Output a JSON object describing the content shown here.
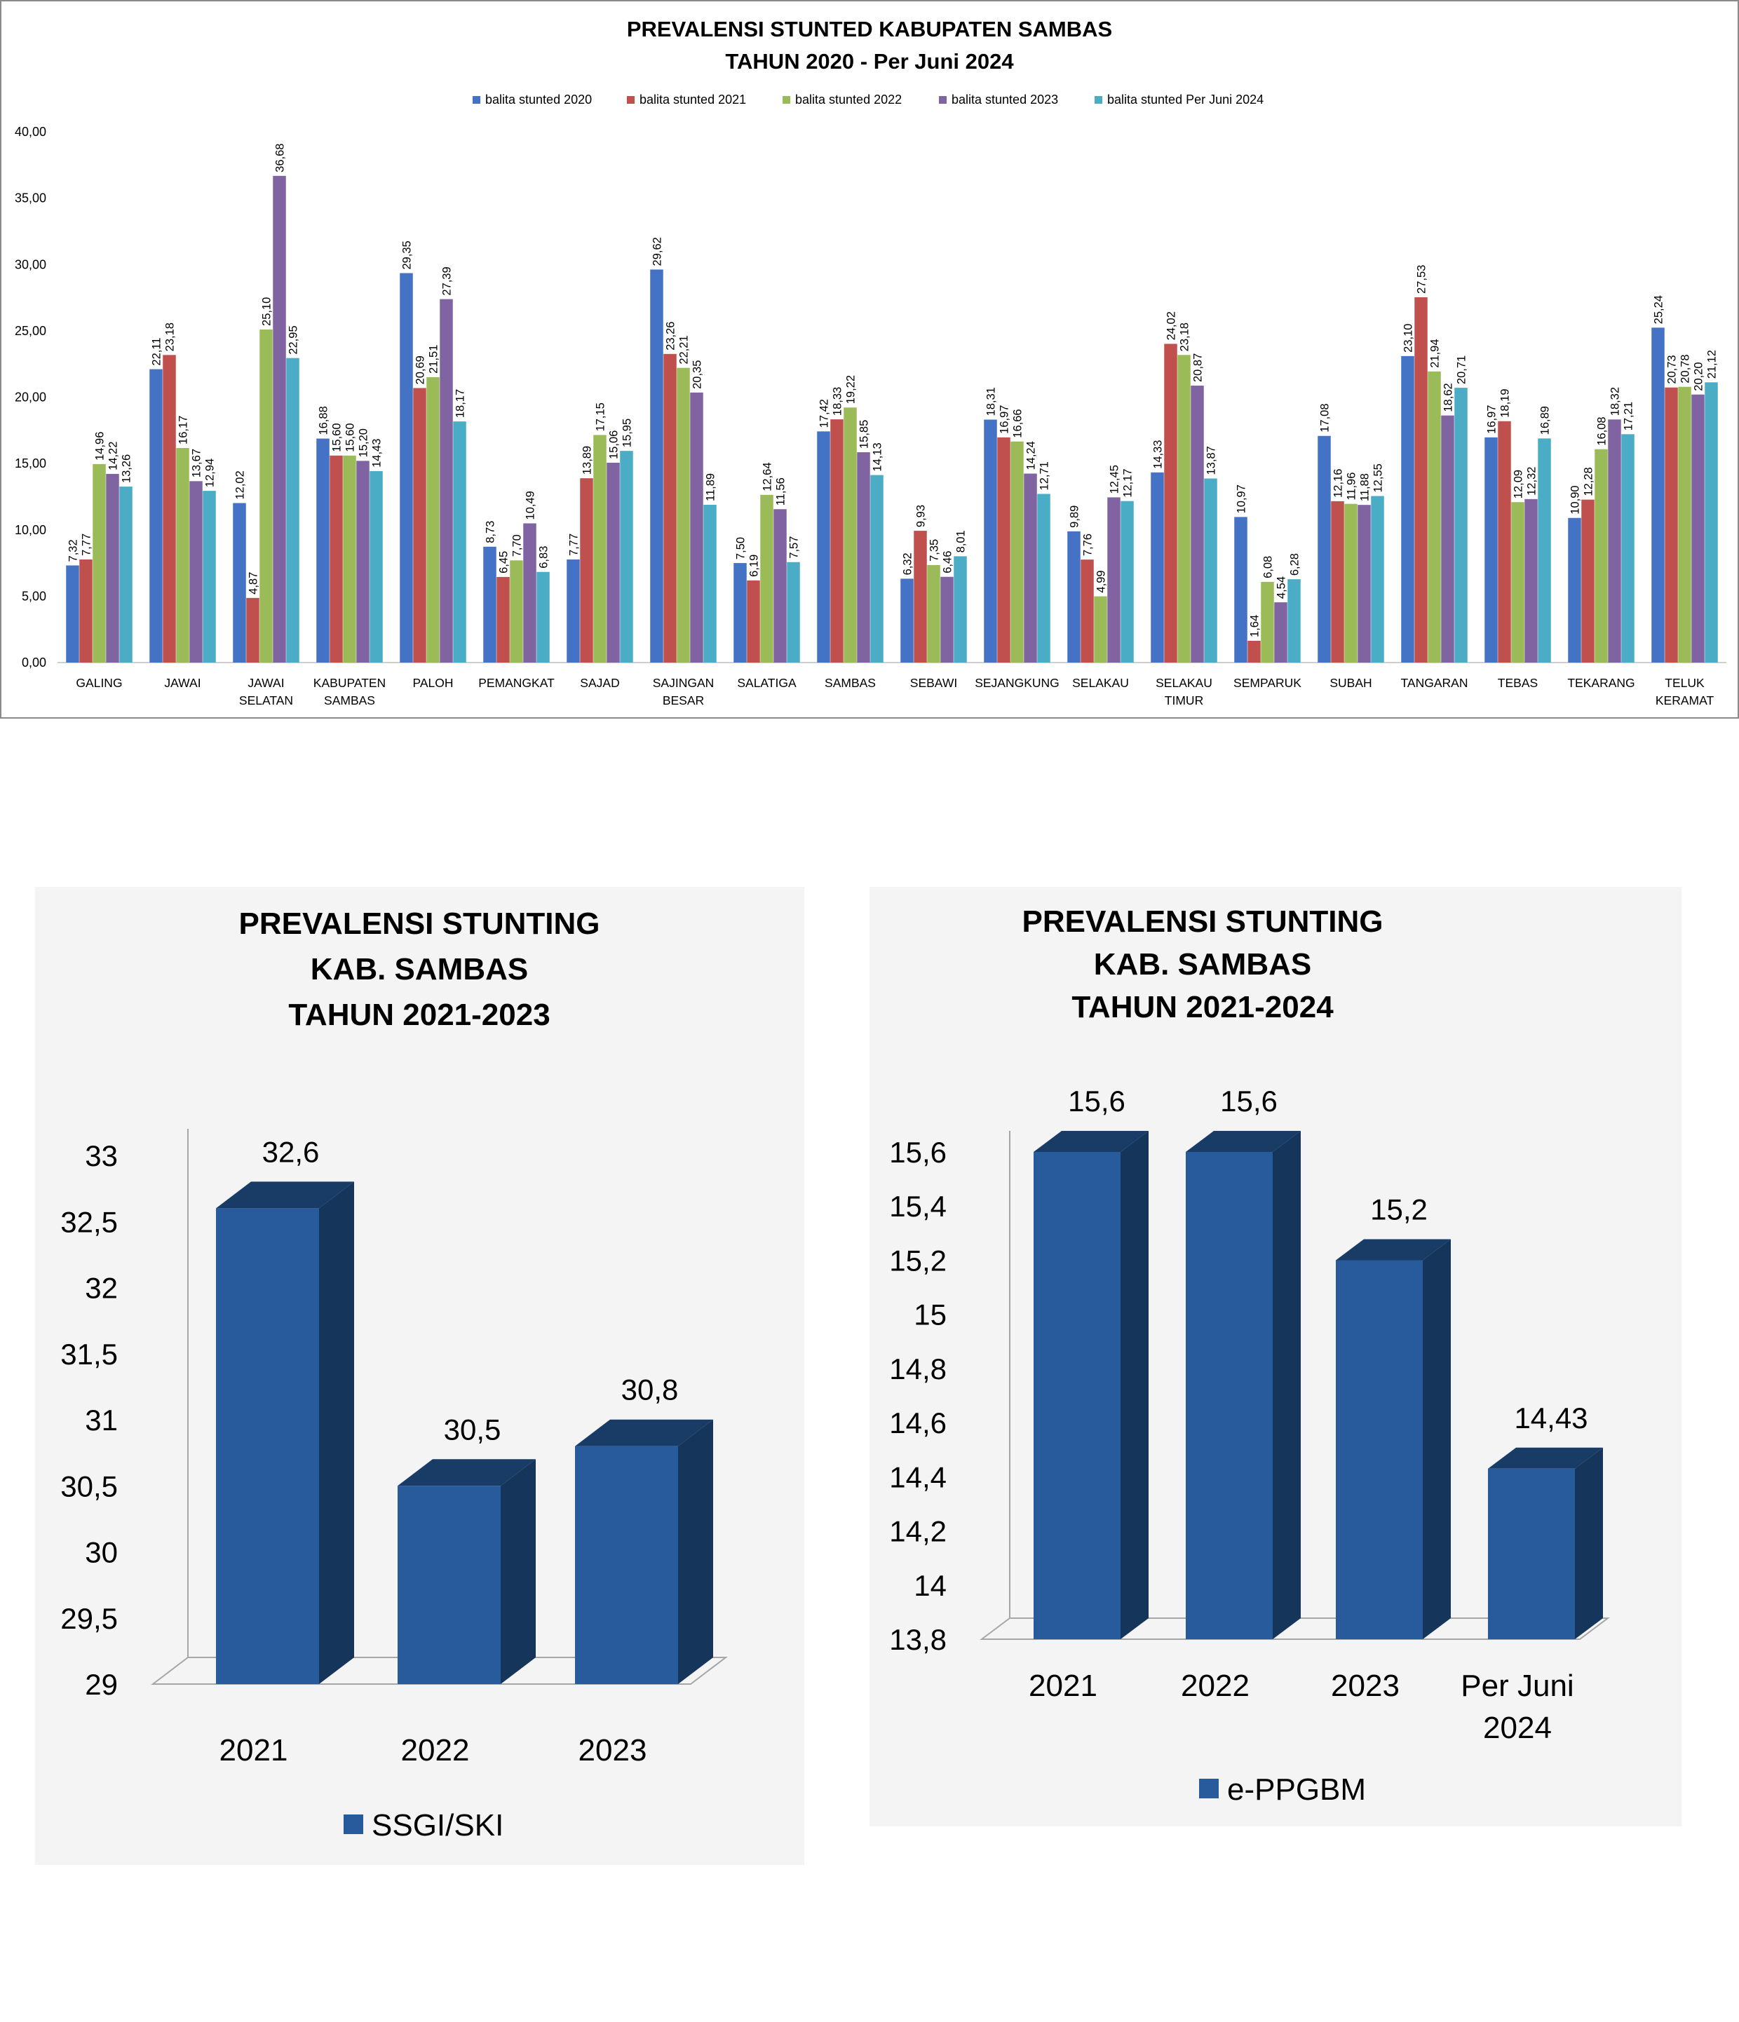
{
  "chart_data": [
    {
      "type": "bar",
      "title": "PREVALENSI STUNTED KABUPATEN SAMBAS",
      "subtitle": "TAHUN 2020 - Per Juni 2024",
      "ylim": [
        0,
        40
      ],
      "yticks": [
        "0,00",
        "5,00",
        "10,00",
        "15,00",
        "20,00",
        "25,00",
        "30,00",
        "35,00",
        "40,00"
      ],
      "legend_position": "top",
      "categories": [
        [
          "GALING"
        ],
        [
          "JAWAI"
        ],
        [
          "JAWAI",
          "SELATAN"
        ],
        [
          "KABUPATEN",
          "SAMBAS"
        ],
        [
          "PALOH"
        ],
        [
          "PEMANGKAT"
        ],
        [
          "SAJAD"
        ],
        [
          "SAJINGAN",
          "BESAR"
        ],
        [
          "SALATIGA"
        ],
        [
          "SAMBAS"
        ],
        [
          "SEBAWI"
        ],
        [
          "SEJANGKUNG"
        ],
        [
          "SELAKAU"
        ],
        [
          "SELAKAU",
          "TIMUR"
        ],
        [
          "SEMPARUK"
        ],
        [
          "SUBAH"
        ],
        [
          "TANGARAN"
        ],
        [
          "TEBAS"
        ],
        [
          "TEKARANG"
        ],
        [
          "TELUK",
          "KERAMAT"
        ]
      ],
      "series": [
        {
          "name": "balita stunted 2020",
          "color": "#4472c4",
          "values": [
            7.32,
            22.11,
            12.02,
            16.88,
            29.35,
            8.73,
            7.77,
            29.62,
            7.5,
            17.42,
            6.32,
            18.31,
            9.89,
            14.33,
            10.97,
            17.08,
            23.1,
            16.97,
            10.9,
            25.24
          ],
          "labels": [
            "7,32",
            "22,11",
            "12,02",
            "16,88",
            "29,35",
            "8,73",
            "7,77",
            "29,62",
            "7,50",
            "17,42",
            "6,32",
            "18,31",
            "9,89",
            "14,33",
            "10,97",
            "17,08",
            "23,10",
            "16,97",
            "10,90",
            "25,24"
          ]
        },
        {
          "name": "balita stunted 2021",
          "color": "#c0504d",
          "values": [
            7.77,
            23.18,
            4.87,
            15.6,
            20.69,
            6.45,
            13.89,
            23.26,
            6.19,
            18.33,
            9.93,
            16.97,
            7.76,
            24.02,
            1.64,
            12.16,
            27.53,
            18.19,
            12.28,
            20.73
          ],
          "labels": [
            "7,77",
            "23,18",
            "4,87",
            "15,60",
            "20,69",
            "6,45",
            "13,89",
            "23,26",
            "6,19",
            "18,33",
            "9,93",
            "16,97",
            "7,76",
            "24,02",
            "1,64",
            "12,16",
            "27,53",
            "18,19",
            "12,28",
            "20,73"
          ]
        },
        {
          "name": "balita stunted 2022",
          "color": "#9bbb59",
          "values": [
            14.96,
            16.17,
            25.1,
            15.6,
            21.51,
            7.7,
            17.15,
            22.21,
            12.64,
            19.22,
            7.35,
            16.66,
            4.99,
            23.18,
            6.08,
            11.96,
            21.94,
            12.09,
            16.08,
            20.78
          ],
          "labels": [
            "14,96",
            "16,17",
            "25,10",
            "15,60",
            "21,51",
            "7,70",
            "17,15",
            "22,21",
            "12,64",
            "19,22",
            "7,35",
            "16,66",
            "4,99",
            "23,18",
            "6,08",
            "11,96",
            "21,94",
            "12,09",
            "16,08",
            "20,78"
          ]
        },
        {
          "name": "balita stunted 2023",
          "color": "#8064a2",
          "values": [
            14.22,
            13.67,
            36.68,
            15.2,
            27.39,
            10.49,
            15.06,
            20.35,
            11.56,
            15.85,
            6.46,
            14.24,
            12.45,
            20.87,
            4.54,
            11.88,
            18.62,
            12.32,
            18.32,
            20.2
          ],
          "labels": [
            "14,22",
            "13,67",
            "36,68",
            "15,20",
            "27,39",
            "10,49",
            "15,06",
            "20,35",
            "11,56",
            "15,85",
            "6,46",
            "14,24",
            "12,45",
            "20,87",
            "4,54",
            "11,88",
            "18,62",
            "12,32",
            "18,32",
            "20,20"
          ]
        },
        {
          "name": "balita stunted Per Juni 2024",
          "color": "#4bacc6",
          "values": [
            13.26,
            12.94,
            22.95,
            14.43,
            18.17,
            6.83,
            15.95,
            11.89,
            7.57,
            14.13,
            8.01,
            12.71,
            12.17,
            13.87,
            6.28,
            12.55,
            20.71,
            16.89,
            17.21,
            21.12
          ],
          "labels": [
            "13,26",
            "12,94",
            "22,95",
            "14,43",
            "18,17",
            "6,83",
            "15,95",
            "11,89",
            "7,57",
            "14,13",
            "8,01",
            "12,71",
            "12,17",
            "13,87",
            "6,28",
            "12,55",
            "20,71",
            "16,89",
            "17,21",
            "21,12"
          ]
        }
      ]
    },
    {
      "type": "bar",
      "title_lines": [
        "PREVALENSI STUNTING",
        "KAB. SAMBAS",
        "TAHUN 2021-2023"
      ],
      "categories": [
        [
          "2021"
        ],
        [
          "2022"
        ],
        [
          "2023"
        ]
      ],
      "ylim": [
        29,
        33
      ],
      "yticks": [
        "29",
        "29,5",
        "30",
        "30,5",
        "31",
        "31,5",
        "32",
        "32,5",
        "33"
      ],
      "series": [
        {
          "name": "SSGI/SKI",
          "color": "#1f497d",
          "values": [
            32.6,
            30.5,
            30.8
          ],
          "labels": [
            "32,6",
            "30,5",
            "30,8"
          ]
        }
      ],
      "legend_position": "bottom"
    },
    {
      "type": "bar",
      "title_lines": [
        "PREVALENSI STUNTING",
        "KAB. SAMBAS",
        "TAHUN 2021-2024"
      ],
      "categories": [
        [
          "2021"
        ],
        [
          "2022"
        ],
        [
          "2023"
        ],
        [
          "Per Juni",
          "2024"
        ]
      ],
      "ylim": [
        13.8,
        15.6
      ],
      "yticks": [
        "13,8",
        "14",
        "14,2",
        "14,4",
        "14,6",
        "14,8",
        "15",
        "15,2",
        "15,4",
        "15,6"
      ],
      "series": [
        {
          "name": "e-PPGBM",
          "color": "#1f497d",
          "values": [
            15.6,
            15.6,
            15.2,
            14.43
          ],
          "labels": [
            "15,6",
            "15,6",
            "15,2",
            "14,43"
          ]
        }
      ],
      "legend_position": "bottom"
    }
  ]
}
